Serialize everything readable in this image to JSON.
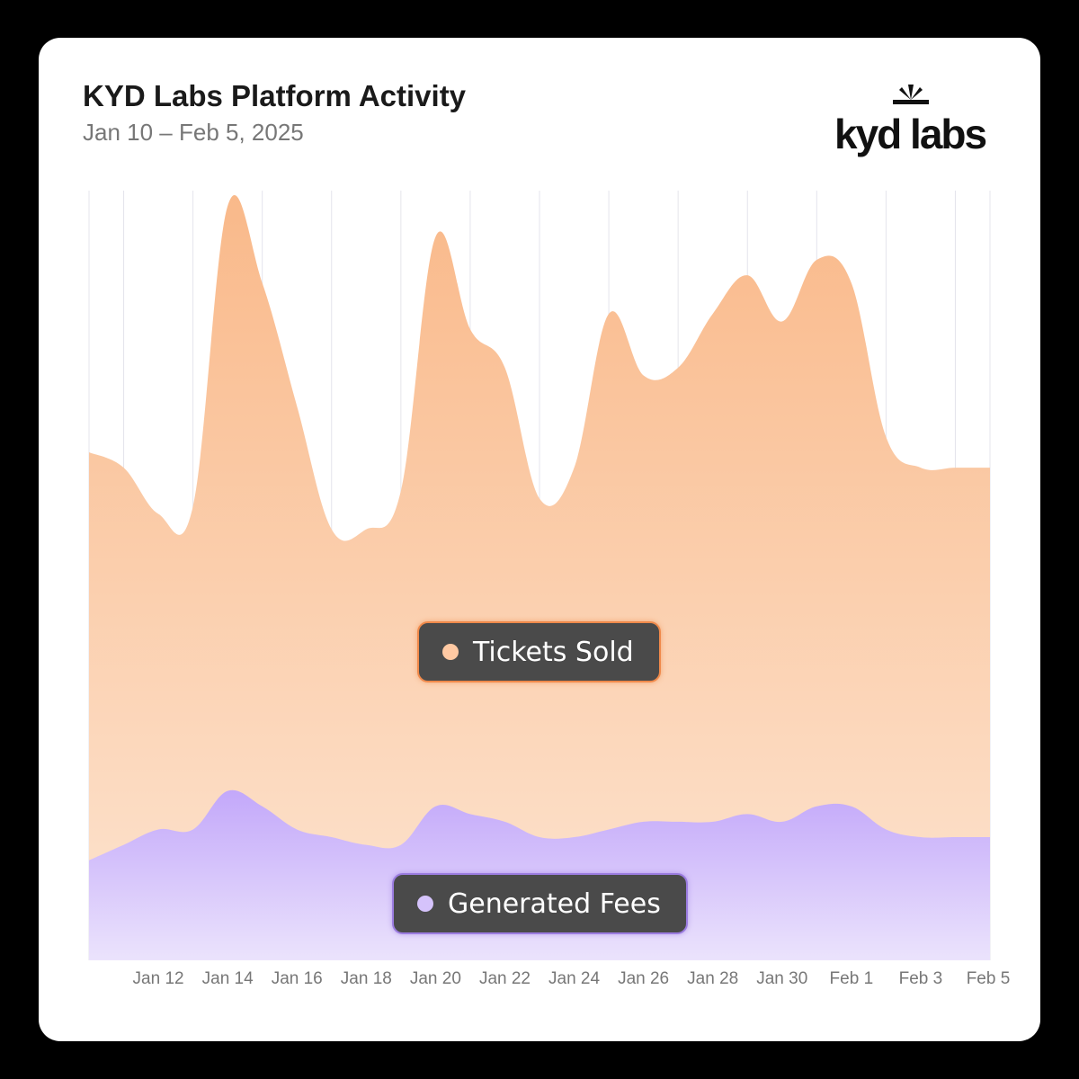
{
  "title": "KYD Labs Platform Activity",
  "subtitle": "Jan 10 – Feb 5, 2025",
  "logo": {
    "text": "kyd labs",
    "icon": "sunrise-icon"
  },
  "colors": {
    "tickets_top": "#f9b98a",
    "tickets_bottom": "#fde4d0",
    "fees_top": "#c3a8fa",
    "fees_bottom": "#ebe3fc",
    "grid": "#e4e4ec",
    "tick_text": "#777777"
  },
  "chart_data": {
    "type": "area",
    "title": "KYD Labs Platform Activity",
    "subtitle": "Jan 10 – Feb 5, 2025",
    "x": [
      "Jan 10",
      "Jan 11",
      "Jan 12",
      "Jan 13",
      "Jan 14",
      "Jan 15",
      "Jan 16",
      "Jan 17",
      "Jan 18",
      "Jan 19",
      "Jan 20",
      "Jan 21",
      "Jan 22",
      "Jan 23",
      "Jan 24",
      "Jan 25",
      "Jan 26",
      "Jan 27",
      "Jan 28",
      "Jan 29",
      "Jan 30",
      "Jan 31",
      "Feb 1",
      "Feb 2",
      "Feb 3",
      "Feb 4",
      "Feb 5"
    ],
    "x_tick_labels": [
      "Jan 12",
      "Jan 14",
      "Jan 16",
      "Jan 18",
      "Jan 20",
      "Jan 22",
      "Jan 24",
      "Jan 26",
      "Jan 28",
      "Jan 30",
      "Feb 1",
      "Feb 3",
      "Feb 5"
    ],
    "series": [
      {
        "name": "Tickets Sold",
        "values": [
          66,
          64,
          58,
          59,
          98,
          88,
          72,
          56,
          56,
          61,
          94,
          82,
          77,
          60,
          64,
          84,
          76,
          77,
          84,
          89,
          83,
          91,
          88,
          68,
          64,
          64,
          64
        ]
      },
      {
        "name": "Generated Fees",
        "values": [
          13,
          15,
          17,
          17,
          22,
          20,
          17,
          16,
          15,
          15,
          20,
          19,
          18,
          16,
          16,
          17,
          18,
          18,
          18,
          19,
          18,
          20,
          20,
          17,
          16,
          16,
          16
        ]
      }
    ],
    "ylim": [
      0,
      100
    ],
    "grid": true,
    "grid_axis": "x",
    "legend": "center"
  }
}
